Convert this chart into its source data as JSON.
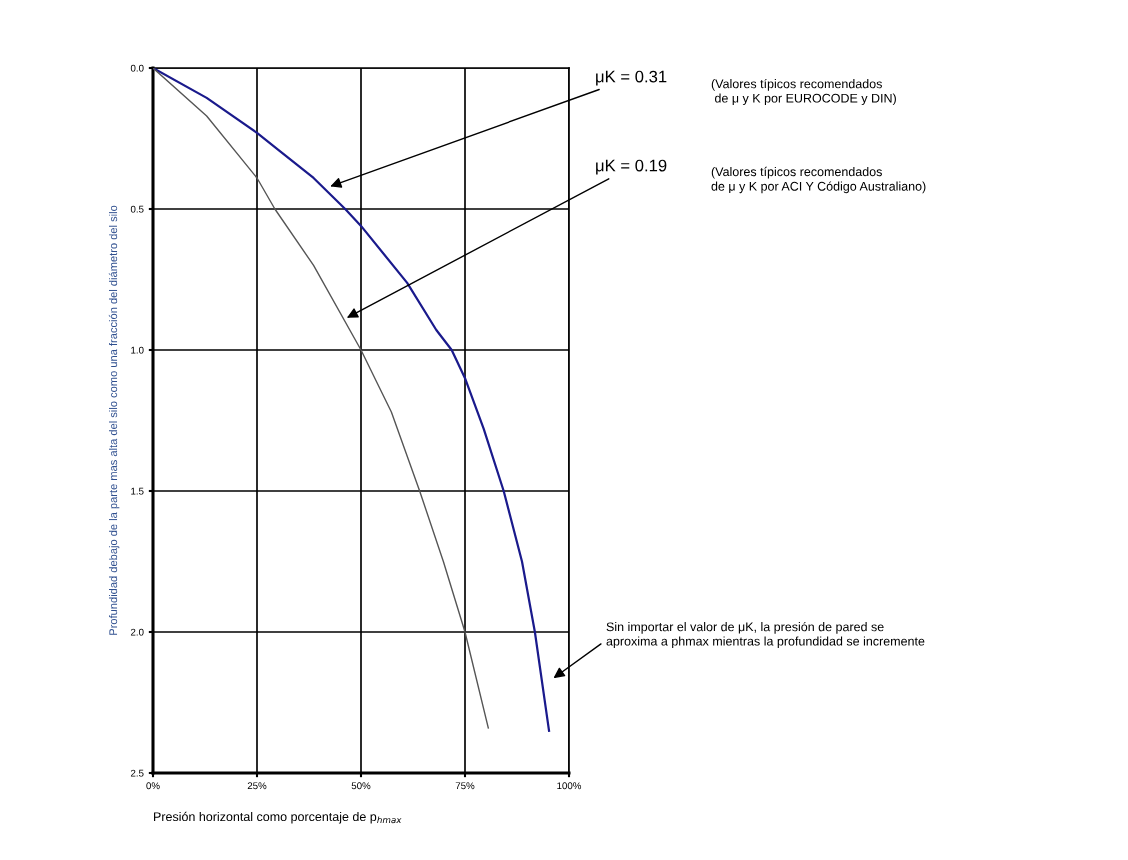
{
  "chart_data": {
    "type": "line",
    "xlabel": "Presión horizontal como porcentaje de p$_{hmax}$",
    "ylabel": "Profundidad debajo de la parte mas alta del silo como una fracción del diámetro del silo",
    "series": [
      {
        "color": "#1a1a8c",
        "x": [
          0,
          12.9,
          25,
          30.5,
          38.6,
          46.2,
          50,
          61.1,
          68.1,
          71.8,
          75,
          79.5,
          84.3,
          88.7,
          91.8,
          95.2
        ],
        "values": [
          0,
          0.106,
          0.23,
          0.295,
          0.39,
          0.5,
          0.56,
          0.762,
          0.929,
          1.0,
          1.1,
          1.28,
          1.5,
          1.75,
          2.0,
          2.35
        ]
      },
      {
        "color": "#555555",
        "x": [
          0,
          12.9,
          25,
          29.3,
          38.6,
          50,
          57.3,
          64.1,
          69.8,
          75,
          80.6
        ],
        "values": [
          0,
          0.17,
          0.39,
          0.5,
          0.7,
          1.0,
          1.22,
          1.5,
          1.75,
          2.0,
          2.34
        ]
      }
    ],
    "xlim": [
      0,
      100
    ],
    "xticks": [
      {
        "value": 0,
        "label": "0%"
      },
      {
        "value": 25,
        "label": "25%"
      },
      {
        "value": 50,
        "label": "50%"
      },
      {
        "value": 75,
        "label": "75%"
      },
      {
        "value": 100,
        "label": "100%"
      }
    ],
    "ylim": [
      2.5,
      0
    ],
    "yticks": [
      {
        "value": 0,
        "label": "0.0"
      },
      {
        "value": 0.5,
        "label": "0.5"
      },
      {
        "value": 1,
        "label": "1.0"
      },
      {
        "value": 1.5,
        "label": "1.5"
      },
      {
        "value": 2,
        "label": "2.0"
      },
      {
        "value": 2.5,
        "label": "2.5"
      }
    ],
    "grid": true,
    "legend": false,
    "annotations": [
      {
        "text": "μK = 0.31",
        "x": 42.6,
        "y": 0.42
      },
      "(Valores típicos recomendados\n de μ y K por EUROCODE y DIN)",
      {
        "text": "μK = 0.19",
        "x": 46.6,
        "y": 0.886
      },
      "(Valores típicos recomendados\nde μ y K por ACI Y Código Australiano)",
      "Sin importar el valor de μK, la presión de pared se\naproxima a phmax mientras la profundidad se incremente"
    ]
  }
}
